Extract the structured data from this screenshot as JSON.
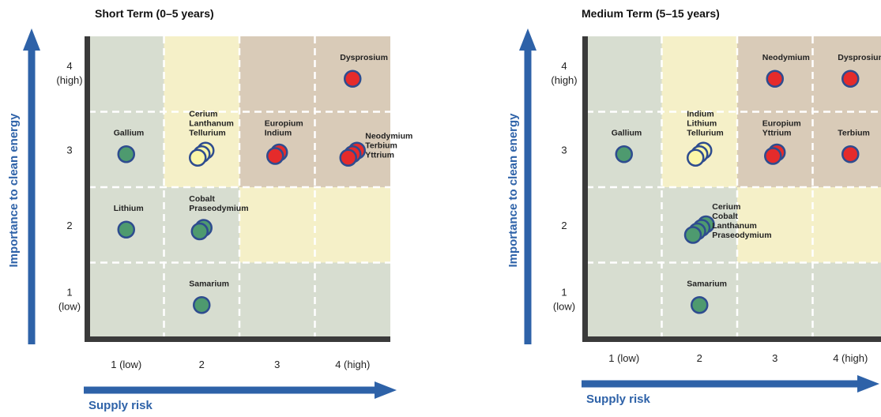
{
  "colors": {
    "axis_arrow": "#2E62A8",
    "frame": "#3a3a3a",
    "grid": "#ffffff",
    "cell_green": "#D7DDD0",
    "cell_yellow": "#F5F0C8",
    "cell_brown": "#D9CBB8",
    "point_stroke": "#2E4C8F",
    "point_green": "#4E9A6F",
    "point_yellow": "#FBF6A8",
    "point_red": "#E52B2B"
  },
  "chart_data": [
    {
      "type": "scatter",
      "title": "Short Term (0–5 years)",
      "xlabel": "Supply risk",
      "ylabel": "Importance to clean energy",
      "xlim": [
        1,
        4
      ],
      "ylim": [
        1,
        4
      ],
      "x_ticks": [
        "1 (low)",
        "2",
        "3",
        "4 (high)"
      ],
      "y_ticks": [
        {
          "value": 1,
          "lines": [
            "1",
            "(low)"
          ]
        },
        {
          "value": 2,
          "lines": [
            "2"
          ]
        },
        {
          "value": 3,
          "lines": [
            "3"
          ]
        },
        {
          "value": 4,
          "lines": [
            "4",
            "(high)"
          ]
        }
      ],
      "grid": true,
      "cells": [
        [
          "green",
          "yellow",
          "brown",
          "brown"
        ],
        [
          "green",
          "yellow",
          "brown",
          "brown"
        ],
        [
          "green",
          "green",
          "yellow",
          "yellow"
        ],
        [
          "green",
          "green",
          "green",
          "green"
        ]
      ],
      "groups": [
        {
          "x": 1,
          "y": 3,
          "risk": "green",
          "labels": [
            "Gallium"
          ],
          "label_pos": "above"
        },
        {
          "x": 1,
          "y": 2,
          "risk": "green",
          "labels": [
            "Lithium"
          ],
          "label_pos": "above"
        },
        {
          "x": 2,
          "y": 3,
          "risk": "yellow",
          "labels": [
            "Cerium",
            "Lanthanum",
            "Tellurium"
          ],
          "label_pos": "above"
        },
        {
          "x": 2,
          "y": 2,
          "risk": "green",
          "labels": [
            "Cobalt",
            "Praseodymium"
          ],
          "label_pos": "above"
        },
        {
          "x": 2,
          "y": 1,
          "risk": "green",
          "labels": [
            "Samarium"
          ],
          "label_pos": "above"
        },
        {
          "x": 3,
          "y": 3,
          "risk": "red",
          "labels": [
            "Europium",
            "Indium"
          ],
          "label_pos": "above"
        },
        {
          "x": 4,
          "y": 3,
          "risk": "red",
          "labels": [
            "Neodymium",
            "Terbium",
            "Yttrium"
          ],
          "label_pos": "right"
        },
        {
          "x": 4,
          "y": 4,
          "risk": "red",
          "labels": [
            "Dysprosium"
          ],
          "label_pos": "above"
        }
      ]
    },
    {
      "type": "scatter",
      "title": "Medium Term (5–15 years)",
      "xlabel": "Supply risk",
      "ylabel": "Importance to clean energy",
      "xlim": [
        1,
        4
      ],
      "ylim": [
        1,
        4
      ],
      "x_ticks": [
        "1 (low)",
        "2",
        "3",
        "4 (high)"
      ],
      "y_ticks": [
        {
          "value": 1,
          "lines": [
            "1",
            "(low)"
          ]
        },
        {
          "value": 2,
          "lines": [
            "2"
          ]
        },
        {
          "value": 3,
          "lines": [
            "3"
          ]
        },
        {
          "value": 4,
          "lines": [
            "4",
            "(high)"
          ]
        }
      ],
      "grid": true,
      "cells": [
        [
          "green",
          "yellow",
          "brown",
          "brown"
        ],
        [
          "green",
          "yellow",
          "brown",
          "brown"
        ],
        [
          "green",
          "green",
          "yellow",
          "yellow"
        ],
        [
          "green",
          "green",
          "green",
          "green"
        ]
      ],
      "groups": [
        {
          "x": 1,
          "y": 3,
          "risk": "green",
          "labels": [
            "Gallium"
          ],
          "label_pos": "above"
        },
        {
          "x": 2,
          "y": 3,
          "risk": "yellow",
          "labels": [
            "Indium",
            "Lithium",
            "Tellurium"
          ],
          "label_pos": "above"
        },
        {
          "x": 2,
          "y": 2,
          "risk": "green",
          "labels": [
            "Cerium",
            "Cobalt",
            "Lanthanum",
            "Praseodymium"
          ],
          "label_pos": "right"
        },
        {
          "x": 2,
          "y": 1,
          "risk": "green",
          "labels": [
            "Samarium"
          ],
          "label_pos": "above"
        },
        {
          "x": 3,
          "y": 4,
          "risk": "red",
          "labels": [
            "Neodymium"
          ],
          "label_pos": "above"
        },
        {
          "x": 3,
          "y": 3,
          "risk": "red",
          "labels": [
            "Europium",
            "Yttrium"
          ],
          "label_pos": "above"
        },
        {
          "x": 4,
          "y": 4,
          "risk": "red",
          "labels": [
            "Dysprosium"
          ],
          "label_pos": "above"
        },
        {
          "x": 4,
          "y": 3,
          "risk": "red",
          "labels": [
            "Terbium"
          ],
          "label_pos": "above"
        }
      ]
    }
  ]
}
